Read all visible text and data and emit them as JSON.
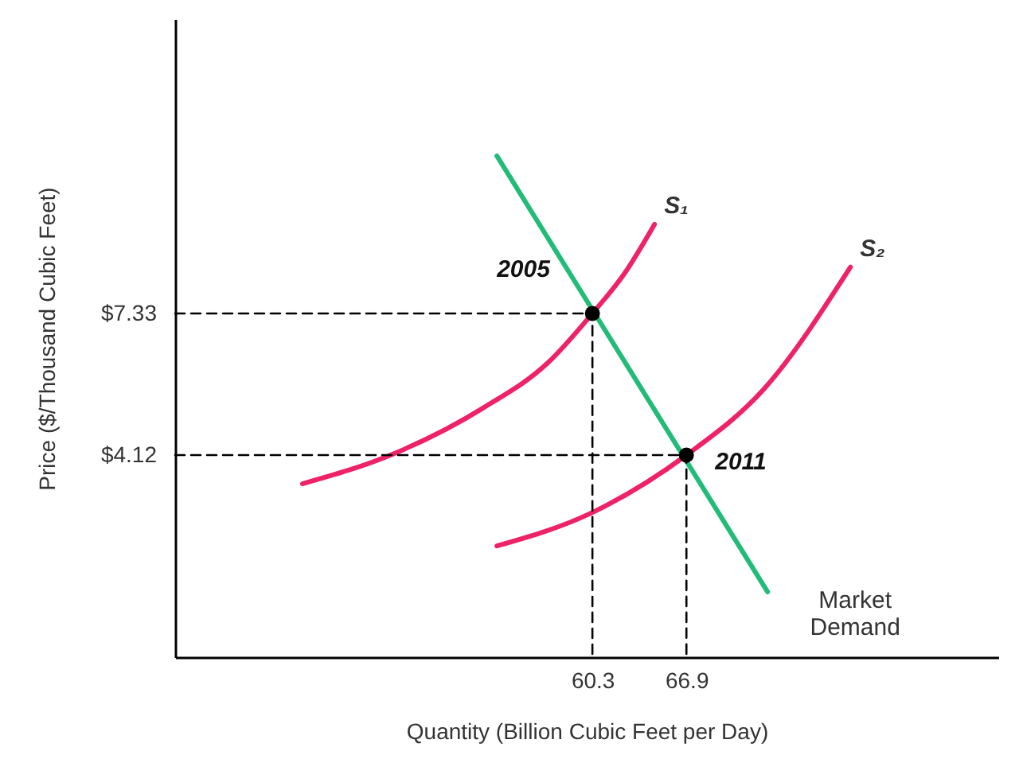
{
  "chart_data": {
    "type": "line",
    "xlabel": "Quantity (Billion Cubic Feet per Day)",
    "ylabel": "Price ($/Thousand Cubic Feet)",
    "xlim": [
      31.0,
      88.8
    ],
    "ylim": [
      -0.46,
      14.0
    ],
    "xticks": [
      60.3,
      66.9
    ],
    "yticks": [
      {
        "value": 7.33,
        "label": "$7.33"
      },
      {
        "value": 4.12,
        "label": "$4.12"
      }
    ],
    "grid": false,
    "series": [
      {
        "name": "S₁",
        "color": "#ee2266",
        "x": [
          39.94,
          46.43,
          52.69,
          57.17,
          60.3,
          62.54,
          64.66
        ],
        "values": [
          3.47,
          4.16,
          5.2,
          6.21,
          7.33,
          8.23,
          9.35
        ]
      },
      {
        "name": "S₂",
        "color": "#ee2266",
        "x": [
          53.59,
          60.3,
          66.9,
          72.38,
          78.42
        ],
        "values": [
          2.06,
          2.82,
          4.12,
          5.63,
          8.38
        ]
      },
      {
        "name": "Market Demand",
        "color": "#22bb77",
        "x": [
          53.59,
          72.6
        ],
        "values": [
          10.9,
          1.02
        ]
      },
      {
        "type": "line",
        "color": "#000000",
        "line_style": "dashed",
        "x": [
          31.0,
          60.3,
          60.3
        ],
        "values": [
          7.33,
          7.33,
          -0.46
        ]
      },
      {
        "type": "line",
        "color": "#000000",
        "line_style": "dashed",
        "x": [
          31.0,
          66.9,
          66.9
        ],
        "values": [
          4.12,
          4.12,
          -0.46
        ]
      },
      {
        "type": "scatter",
        "color": "#000000",
        "marker": "circle",
        "x": [
          60.3,
          66.9
        ],
        "values": [
          7.33,
          4.12
        ]
      }
    ],
    "annotations": [
      {
        "text": "2005",
        "x": 60.3,
        "y": 7.33
      },
      {
        "text": "2011",
        "x": 66.9,
        "y": 4.12
      }
    ]
  }
}
